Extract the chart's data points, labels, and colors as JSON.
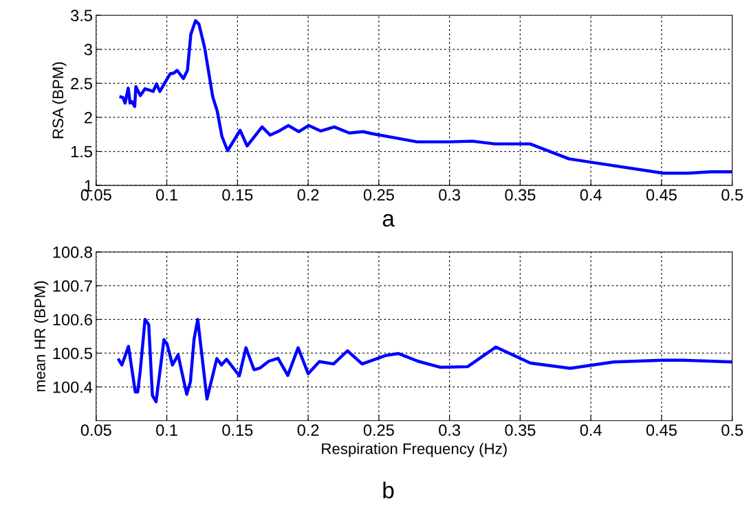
{
  "chart_data": [
    {
      "type": "line",
      "ylabel": "RSA (BPM)",
      "annotations": [
        "a"
      ],
      "grid": true,
      "line_style": "solid",
      "xlim": [
        0.05,
        0.5
      ],
      "xticks": [
        0.05,
        0.1,
        0.15,
        0.2,
        0.25,
        0.3,
        0.35,
        0.4,
        0.45,
        0.5
      ],
      "ylim": [
        1,
        3.5
      ],
      "yticks": [
        1,
        1.5,
        2,
        2.5,
        3,
        3.5
      ],
      "series": [
        {
          "color": "#0000ff",
          "x": [
            0.0675,
            0.069,
            0.0705,
            0.0727,
            0.074,
            0.0753,
            0.0773,
            0.0781,
            0.0813,
            0.0846,
            0.0878,
            0.0903,
            0.0927,
            0.0951,
            0.0984,
            0.1024,
            0.1049,
            0.1073,
            0.1117,
            0.1146,
            0.117,
            0.1203,
            0.1227,
            0.1268,
            0.1325,
            0.1357,
            0.139,
            0.143,
            0.1519,
            0.1568,
            0.1674,
            0.1731,
            0.1795,
            0.186,
            0.1933,
            0.2003,
            0.2088,
            0.2185,
            0.2291,
            0.2388,
            0.2453,
            0.2637,
            0.277,
            0.3003,
            0.3162,
            0.332,
            0.357,
            0.3845,
            0.4003,
            0.4512,
            0.4687,
            0.4853,
            0.5
          ],
          "values": [
            2.3,
            2.29,
            2.21,
            2.43,
            2.21,
            2.23,
            2.16,
            2.45,
            2.32,
            2.42,
            2.4,
            2.38,
            2.49,
            2.38,
            2.5,
            2.64,
            2.65,
            2.69,
            2.57,
            2.69,
            3.22,
            3.42,
            3.37,
            3.02,
            2.3,
            2.09,
            1.72,
            1.51,
            1.81,
            1.58,
            1.86,
            1.74,
            1.8,
            1.88,
            1.79,
            1.88,
            1.8,
            1.86,
            1.77,
            1.79,
            1.76,
            1.69,
            1.64,
            1.64,
            1.65,
            1.61,
            1.61,
            1.39,
            1.34,
            1.18,
            1.18,
            1.2,
            1.2
          ]
        }
      ]
    },
    {
      "type": "line",
      "xlabel": "Respiration Frequency (Hz)",
      "ylabel": "mean HR (BPM)",
      "annotations": [
        "b"
      ],
      "grid": true,
      "line_style": "solid",
      "xlim": [
        0.05,
        0.5
      ],
      "xticks": [
        0.05,
        0.1,
        0.15,
        0.2,
        0.25,
        0.3,
        0.35,
        0.4,
        0.45,
        0.5
      ],
      "ylim": [
        100.3,
        100.8
      ],
      "yticks": [
        100.4,
        100.5,
        100.6,
        100.7,
        100.8
      ],
      "series": [
        {
          "color": "#0000ff",
          "x": [
            0.0661,
            0.0682,
            0.0729,
            0.0777,
            0.0794,
            0.0812,
            0.0846,
            0.0872,
            0.0898,
            0.0924,
            0.098,
            0.1002,
            0.104,
            0.108,
            0.1141,
            0.1167,
            0.1193,
            0.1219,
            0.1284,
            0.1354,
            0.1387,
            0.1423,
            0.1513,
            0.156,
            0.1617,
            0.166,
            0.1721,
            0.1787,
            0.1856,
            0.1929,
            0.2,
            0.2079,
            0.218,
            0.2278,
            0.2382,
            0.2548,
            0.2637,
            0.2778,
            0.2937,
            0.3128,
            0.3328,
            0.357,
            0.3853,
            0.4162,
            0.437,
            0.4503,
            0.4653,
            0.5
          ],
          "values": [
            100.48,
            100.465,
            100.52,
            100.385,
            100.385,
            100.447,
            100.6,
            100.585,
            100.375,
            100.356,
            100.54,
            100.527,
            100.465,
            100.495,
            100.378,
            100.415,
            100.542,
            100.6,
            100.364,
            100.484,
            100.465,
            100.482,
            100.433,
            100.516,
            100.451,
            100.456,
            100.476,
            100.485,
            100.434,
            100.516,
            100.439,
            100.475,
            100.468,
            100.507,
            100.468,
            100.493,
            100.499,
            100.476,
            100.458,
            100.46,
            100.518,
            100.471,
            100.455,
            100.474,
            100.477,
            100.479,
            100.479,
            100.474
          ]
        }
      ]
    }
  ]
}
